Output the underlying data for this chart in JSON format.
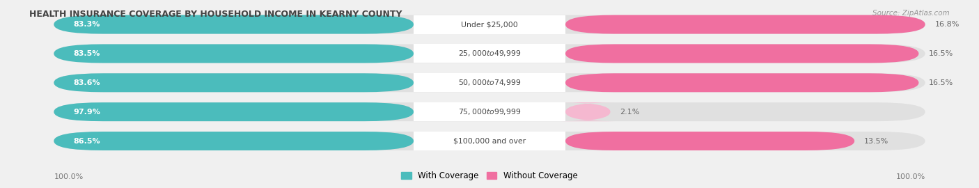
{
  "title": "HEALTH INSURANCE COVERAGE BY HOUSEHOLD INCOME IN KEARNY COUNTY",
  "source": "Source: ZipAtlas.com",
  "categories": [
    "Under $25,000",
    "$25,000 to $49,999",
    "$50,000 to $74,999",
    "$75,000 to $99,999",
    "$100,000 and over"
  ],
  "with_coverage": [
    83.3,
    83.5,
    83.6,
    97.9,
    86.5
  ],
  "without_coverage": [
    16.8,
    16.5,
    16.5,
    2.1,
    13.5
  ],
  "color_with": "#4bbcbc",
  "color_without": "#f06fa0",
  "color_without_light": "#f5b8d0",
  "background_color": "#f0f0f0",
  "bar_background": "#e0e0e0",
  "legend_with": "With Coverage",
  "legend_without": "Without Coverage",
  "left_label": "100.0%",
  "right_label": "100.0%"
}
